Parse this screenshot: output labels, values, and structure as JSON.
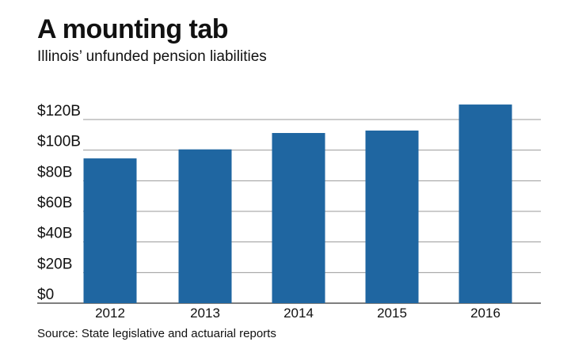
{
  "title": "A mounting tab",
  "subtitle": "Illinois’ unfunded pension liabilities",
  "source": "Source: State legislative and actuarial reports",
  "colors": {
    "bar": "#1f66a1",
    "grid": "#9a9a9a",
    "axis": "#333333"
  },
  "chart_data": {
    "type": "bar",
    "title": "A mounting tab",
    "subtitle": "Illinois’ unfunded pension liabilities",
    "categories": [
      "2012",
      "2013",
      "2014",
      "2015",
      "2016"
    ],
    "series": [
      {
        "values": [
          94.6,
          100.5,
          111.2,
          112.8,
          129.8
        ]
      }
    ],
    "ylim": [
      0,
      120
    ],
    "yticks": [
      0,
      20,
      40,
      60,
      80,
      100,
      120
    ],
    "ytick_labels": [
      "$0",
      "$20B",
      "$40B",
      "$60B",
      "$80B",
      "$100B",
      "$120B"
    ],
    "xlabel": "",
    "ylabel": "",
    "grid": true,
    "legend": "none"
  }
}
